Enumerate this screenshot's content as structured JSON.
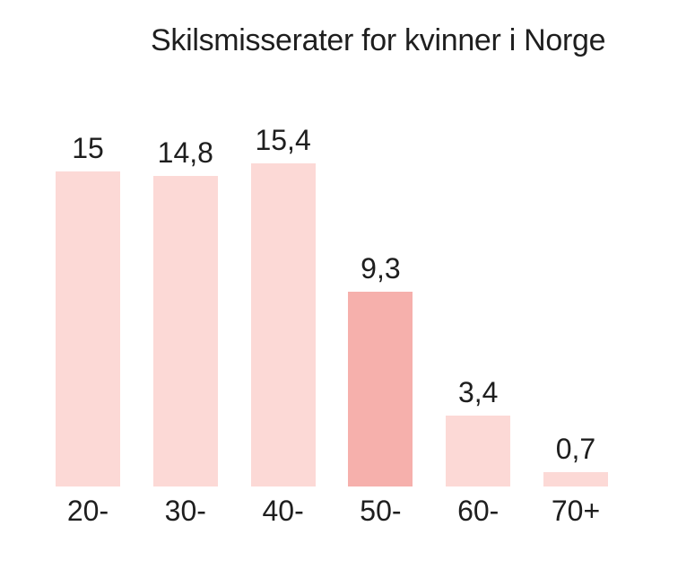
{
  "title": "Skilsmisserater for kvinner i Norge",
  "chart_data": {
    "type": "bar",
    "title": "Skilsmisserater for kvinner i Norge",
    "categories": [
      "20-",
      "30-",
      "40-",
      "50-",
      "60-",
      "70+"
    ],
    "values": [
      15,
      14.8,
      15.4,
      9.3,
      3.4,
      0.7
    ],
    "value_labels": [
      "15",
      "14,8",
      "15,4",
      "9,3",
      "3,4",
      "0,7"
    ],
    "decimal_separator": ",",
    "ylim": [
      0,
      15.4
    ],
    "xlabel": "",
    "ylabel": "",
    "grid": false,
    "legend": false,
    "axes_visible": false,
    "bar_color": "#fcd9d6",
    "highlight_color": "#f6b0ac",
    "highlight_index": 3,
    "text_color": "#1e1e1e",
    "background_color": "#ffffff"
  }
}
